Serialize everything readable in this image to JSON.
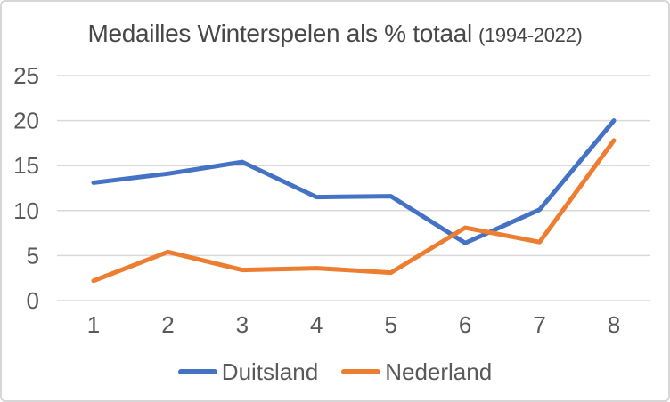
{
  "window": {
    "background": "#ffffff",
    "border_color": "#d8d6d6"
  },
  "title": {
    "main": "Medailles Winterspelen als % totaal",
    "suffix": "(1994-2022)"
  },
  "chart_data": {
    "type": "line",
    "title": "Medailles Winterspelen als % totaal (1994-2022)",
    "x": [
      "1",
      "2",
      "3",
      "4",
      "5",
      "6",
      "7",
      "8"
    ],
    "series": [
      {
        "name": "Duitsland",
        "color": "#4472C4",
        "values": [
          13.1,
          14.1,
          15.4,
          11.5,
          11.6,
          6.4,
          10.1,
          20.0
        ]
      },
      {
        "name": "Nederland",
        "color": "#ED7D31",
        "values": [
          2.2,
          5.4,
          3.4,
          3.6,
          3.1,
          8.1,
          6.5,
          17.8
        ]
      }
    ],
    "xlabel": "",
    "ylabel": "",
    "yticks": [
      0,
      5,
      10,
      15,
      20,
      25
    ],
    "ylim": [
      0,
      25
    ],
    "grid": true,
    "gridline_color": "#d9d9d9",
    "tick_color": "#595959",
    "legend_position": "bottom"
  }
}
